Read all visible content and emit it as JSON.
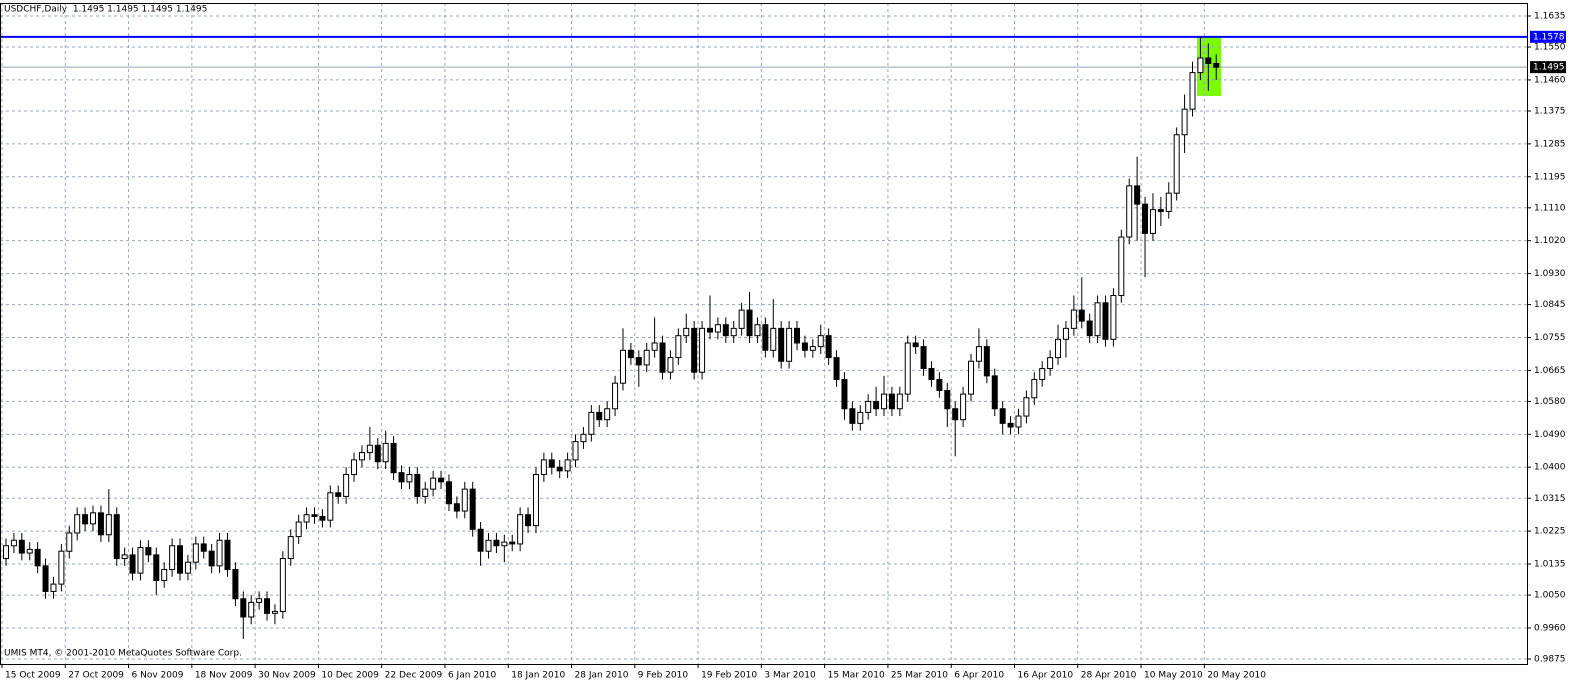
{
  "chart_data": {
    "type": "candlestick",
    "title": "USDCHF,Daily  1.1495 1.1495 1.1495 1.1495",
    "copyright": "UMIS MT4, © 2001-2010 MetaQuotes Software Corp.",
    "grid": true,
    "up_color": "#ffffff",
    "down_color": "#000000",
    "ylim": [
      0.9875,
      1.1635
    ],
    "yticks": [
      1.1635,
      {
        "value": 1.155,
        "label": "1.1550"
      },
      {
        "value": 1.146,
        "label": "1.1460"
      },
      1.1375,
      1.1285,
      1.1195,
      {
        "value": 1.111,
        "label": "1.1110"
      },
      {
        "value": 1.102,
        "label": "1.1020"
      },
      {
        "value": 1.093,
        "label": "1.0930"
      },
      1.0845,
      1.0755,
      1.0665,
      {
        "value": 1.058,
        "label": "1.0580"
      },
      {
        "value": 1.049,
        "label": "1.0490"
      },
      {
        "value": 1.04,
        "label": "1.0400"
      },
      1.0315,
      1.0225,
      1.0135,
      {
        "value": 1.005,
        "label": "1.0050"
      },
      {
        "value": 0.996,
        "label": "0.9960"
      },
      0.9875
    ],
    "hlines": [
      {
        "value": 1.1578,
        "color": "#0000ff",
        "label_background": "#0000ff"
      },
      {
        "value": 1.1495,
        "color": "#8fa3b5",
        "label_background": "#000000"
      }
    ],
    "categories": [
      "15 Oct 2009",
      null,
      null,
      null,
      null,
      null,
      null,
      null,
      "27 Oct 2009",
      null,
      null,
      null,
      null,
      null,
      null,
      null,
      "6 Nov 2009",
      null,
      null,
      null,
      null,
      null,
      null,
      null,
      "18 Nov 2009",
      null,
      null,
      null,
      null,
      null,
      null,
      null,
      "30 Nov 2009",
      null,
      null,
      null,
      null,
      null,
      null,
      null,
      "10 Dec 2009",
      null,
      null,
      null,
      null,
      null,
      null,
      null,
      "22 Dec 2009",
      null,
      null,
      null,
      null,
      null,
      null,
      null,
      "6 Jan 2010",
      null,
      null,
      null,
      null,
      null,
      null,
      null,
      "18 Jan 2010",
      null,
      null,
      null,
      null,
      null,
      null,
      null,
      "28 Jan 2010",
      null,
      null,
      null,
      null,
      null,
      null,
      null,
      "9 Feb 2010",
      null,
      null,
      null,
      null,
      null,
      null,
      null,
      "19 Feb 2010",
      null,
      null,
      null,
      null,
      null,
      null,
      null,
      "3 Mar 2010",
      null,
      null,
      null,
      null,
      null,
      null,
      null,
      "15 Mar 2010",
      null,
      null,
      null,
      null,
      null,
      null,
      null,
      "25 Mar 2010",
      null,
      null,
      null,
      null,
      null,
      null,
      null,
      "6 Apr 2010",
      null,
      null,
      null,
      null,
      null,
      null,
      null,
      "16 Apr 2010",
      null,
      null,
      null,
      null,
      null,
      null,
      null,
      "28 Apr 2010",
      null,
      null,
      null,
      null,
      null,
      null,
      null,
      "10 May 2010",
      null,
      null,
      null,
      null,
      null,
      null,
      null,
      "20 May 2010",
      null
    ],
    "open": [
      1.015,
      1.0185,
      1.02,
      1.0165,
      1.0175,
      1.013,
      1.006,
      1.008,
      1.017,
      1.022,
      1.027,
      1.0245,
      1.0275,
      1.0215,
      1.027,
      1.015,
      1.016,
      1.011,
      1.018,
      1.016,
      1.009,
      1.012,
      1.0185,
      1.011,
      1.014,
      1.019,
      1.017,
      1.013,
      1.02,
      1.012,
      1.004,
      0.999,
      1.003,
      1.004,
      1.0,
      1.0005,
      1.015,
      1.021,
      1.025,
      1.027,
      1.0265,
      1.0255,
      1.033,
      1.032,
      1.038,
      1.042,
      1.044,
      1.046,
      1.0415,
      1.0465,
      1.0385,
      1.036,
      1.038,
      1.032,
      1.034,
      1.037,
      1.036,
      1.03,
      1.028,
      1.034,
      1.023,
      1.017,
      1.02,
      1.0185,
      1.0195,
      1.019,
      1.027,
      1.024,
      1.038,
      1.042,
      1.04,
      1.039,
      1.042,
      1.047,
      1.049,
      1.055,
      1.053,
      1.056,
      1.063,
      1.072,
      1.07,
      1.068,
      1.072,
      1.074,
      1.066,
      1.07,
      1.076,
      1.078,
      1.066,
      1.078,
      1.077,
      1.079,
      1.076,
      1.078,
      1.083,
      1.076,
      1.079,
      1.072,
      1.078,
      1.069,
      1.078,
      1.074,
      1.072,
      1.073,
      1.076,
      1.07,
      1.064,
      1.056,
      1.052,
      1.055,
      1.058,
      1.056,
      1.06,
      1.056,
      1.06,
      1.074,
      1.073,
      1.067,
      1.064,
      1.061,
      1.056,
      1.053,
      1.06,
      1.069,
      1.073,
      1.065,
      1.056,
      1.052,
      1.051,
      1.054,
      1.059,
      1.064,
      1.067,
      1.07,
      1.075,
      1.078,
      1.083,
      1.08,
      1.076,
      1.085,
      1.075,
      1.087,
      1.103,
      1.117,
      1.112,
      1.104,
      1.1105,
      1.11,
      1.115,
      1.131,
      1.138,
      1.148,
      1.152,
      1.1505
    ],
    "high": [
      1.0205,
      1.022,
      1.022,
      1.0195,
      1.0195,
      1.015,
      1.01,
      1.019,
      1.024,
      1.029,
      1.029,
      1.0295,
      1.0295,
      1.034,
      1.029,
      1.018,
      1.018,
      1.02,
      1.02,
      1.018,
      1.014,
      1.0205,
      1.0205,
      1.016,
      1.021,
      1.021,
      1.019,
      1.022,
      1.022,
      1.014,
      1.006,
      1.005,
      1.006,
      1.006,
      1.0025,
      1.017,
      1.023,
      1.027,
      1.029,
      1.029,
      1.0285,
      1.035,
      1.035,
      1.04,
      1.044,
      1.046,
      1.051,
      1.048,
      1.05,
      1.0485,
      1.0405,
      1.04,
      1.04,
      1.036,
      1.039,
      1.039,
      1.038,
      1.032,
      1.036,
      1.036,
      1.025,
      1.022,
      1.022,
      1.0215,
      1.0215,
      1.029,
      1.029,
      1.04,
      1.044,
      1.044,
      1.042,
      1.044,
      1.049,
      1.051,
      1.057,
      1.057,
      1.058,
      1.065,
      1.078,
      1.074,
      1.072,
      1.074,
      1.081,
      1.076,
      1.072,
      1.078,
      1.082,
      1.08,
      1.08,
      1.087,
      1.081,
      1.081,
      1.08,
      1.085,
      1.088,
      1.081,
      1.081,
      1.086,
      1.08,
      1.08,
      1.08,
      1.076,
      1.075,
      1.079,
      1.078,
      1.072,
      1.066,
      1.058,
      1.057,
      1.06,
      1.062,
      1.065,
      1.062,
      1.062,
      1.076,
      1.076,
      1.075,
      1.069,
      1.066,
      1.063,
      1.058,
      1.062,
      1.071,
      1.078,
      1.075,
      1.067,
      1.058,
      1.054,
      1.056,
      1.061,
      1.066,
      1.069,
      1.072,
      1.079,
      1.08,
      1.087,
      1.092,
      1.082,
      1.087,
      1.087,
      1.089,
      1.105,
      1.119,
      1.125,
      1.114,
      1.115,
      1.114,
      1.118,
      1.133,
      1.142,
      1.151,
      1.1578,
      1.156,
      1.153
    ],
    "low": [
      1.013,
      1.0165,
      1.0145,
      1.0145,
      1.011,
      1.004,
      1.004,
      1.006,
      1.015,
      1.02,
      1.0225,
      1.0225,
      1.0195,
      1.0195,
      1.013,
      1.013,
      1.009,
      1.009,
      1.014,
      1.005,
      1.007,
      1.01,
      1.009,
      1.009,
      1.012,
      1.015,
      1.011,
      1.011,
      1.01,
      1.002,
      0.993,
      0.997,
      1.001,
      0.998,
      0.997,
      0.9985,
      1.013,
      1.019,
      1.023,
      1.0245,
      1.0235,
      1.0235,
      1.03,
      1.03,
      1.036,
      1.04,
      1.042,
      1.0395,
      1.0395,
      1.0365,
      1.034,
      1.034,
      1.03,
      1.03,
      1.032,
      1.034,
      1.028,
      1.026,
      1.026,
      1.021,
      1.013,
      1.015,
      1.0165,
      1.014,
      1.017,
      1.017,
      1.022,
      1.022,
      1.036,
      1.038,
      1.037,
      1.037,
      1.04,
      1.045,
      1.047,
      1.051,
      1.051,
      1.054,
      1.061,
      1.068,
      1.062,
      1.066,
      1.07,
      1.064,
      1.064,
      1.068,
      1.074,
      1.064,
      1.064,
      1.075,
      1.075,
      1.074,
      1.074,
      1.076,
      1.074,
      1.074,
      1.07,
      1.07,
      1.067,
      1.067,
      1.072,
      1.07,
      1.07,
      1.071,
      1.068,
      1.062,
      1.053,
      1.05,
      1.05,
      1.053,
      1.054,
      1.054,
      1.054,
      1.054,
      1.058,
      1.071,
      1.065,
      1.062,
      1.059,
      1.051,
      1.043,
      1.051,
      1.058,
      1.067,
      1.063,
      1.054,
      1.049,
      1.049,
      1.049,
      1.052,
      1.057,
      1.062,
      1.065,
      1.068,
      1.07,
      1.076,
      1.078,
      1.074,
      1.074,
      1.073,
      1.073,
      1.085,
      1.101,
      1.102,
      1.092,
      1.102,
      1.106,
      1.108,
      1.113,
      1.126,
      1.136,
      1.146,
      1.143,
      1.146
    ],
    "close": [
      1.0185,
      1.02,
      1.0165,
      1.0175,
      1.013,
      1.006,
      1.008,
      1.017,
      1.022,
      1.027,
      1.0245,
      1.0275,
      1.0215,
      1.027,
      1.015,
      1.016,
      1.011,
      1.018,
      1.016,
      1.009,
      1.012,
      1.0185,
      1.011,
      1.014,
      1.019,
      1.017,
      1.013,
      1.02,
      1.012,
      1.004,
      0.999,
      1.003,
      1.004,
      1.0,
      1.0005,
      1.015,
      1.021,
      1.025,
      1.027,
      1.0265,
      1.0255,
      1.033,
      1.032,
      1.038,
      1.042,
      1.044,
      1.046,
      1.0415,
      1.0465,
      1.0385,
      1.036,
      1.038,
      1.032,
      1.034,
      1.037,
      1.036,
      1.03,
      1.028,
      1.034,
      1.023,
      1.017,
      1.02,
      1.0185,
      1.0195,
      1.019,
      1.027,
      1.024,
      1.038,
      1.042,
      1.04,
      1.039,
      1.042,
      1.047,
      1.049,
      1.055,
      1.053,
      1.056,
      1.063,
      1.072,
      1.07,
      1.068,
      1.072,
      1.074,
      1.066,
      1.07,
      1.076,
      1.078,
      1.066,
      1.078,
      1.077,
      1.079,
      1.076,
      1.078,
      1.083,
      1.076,
      1.079,
      1.072,
      1.078,
      1.069,
      1.078,
      1.074,
      1.072,
      1.073,
      1.076,
      1.07,
      1.064,
      1.056,
      1.052,
      1.055,
      1.058,
      1.056,
      1.06,
      1.056,
      1.06,
      1.074,
      1.073,
      1.067,
      1.064,
      1.061,
      1.056,
      1.053,
      1.06,
      1.069,
      1.073,
      1.065,
      1.056,
      1.052,
      1.051,
      1.054,
      1.059,
      1.064,
      1.067,
      1.07,
      1.075,
      1.078,
      1.083,
      1.08,
      1.076,
      1.085,
      1.075,
      1.087,
      1.103,
      1.117,
      1.112,
      1.104,
      1.1105,
      1.11,
      1.115,
      1.131,
      1.138,
      1.148,
      1.152,
      1.1505,
      1.1495
    ]
  }
}
